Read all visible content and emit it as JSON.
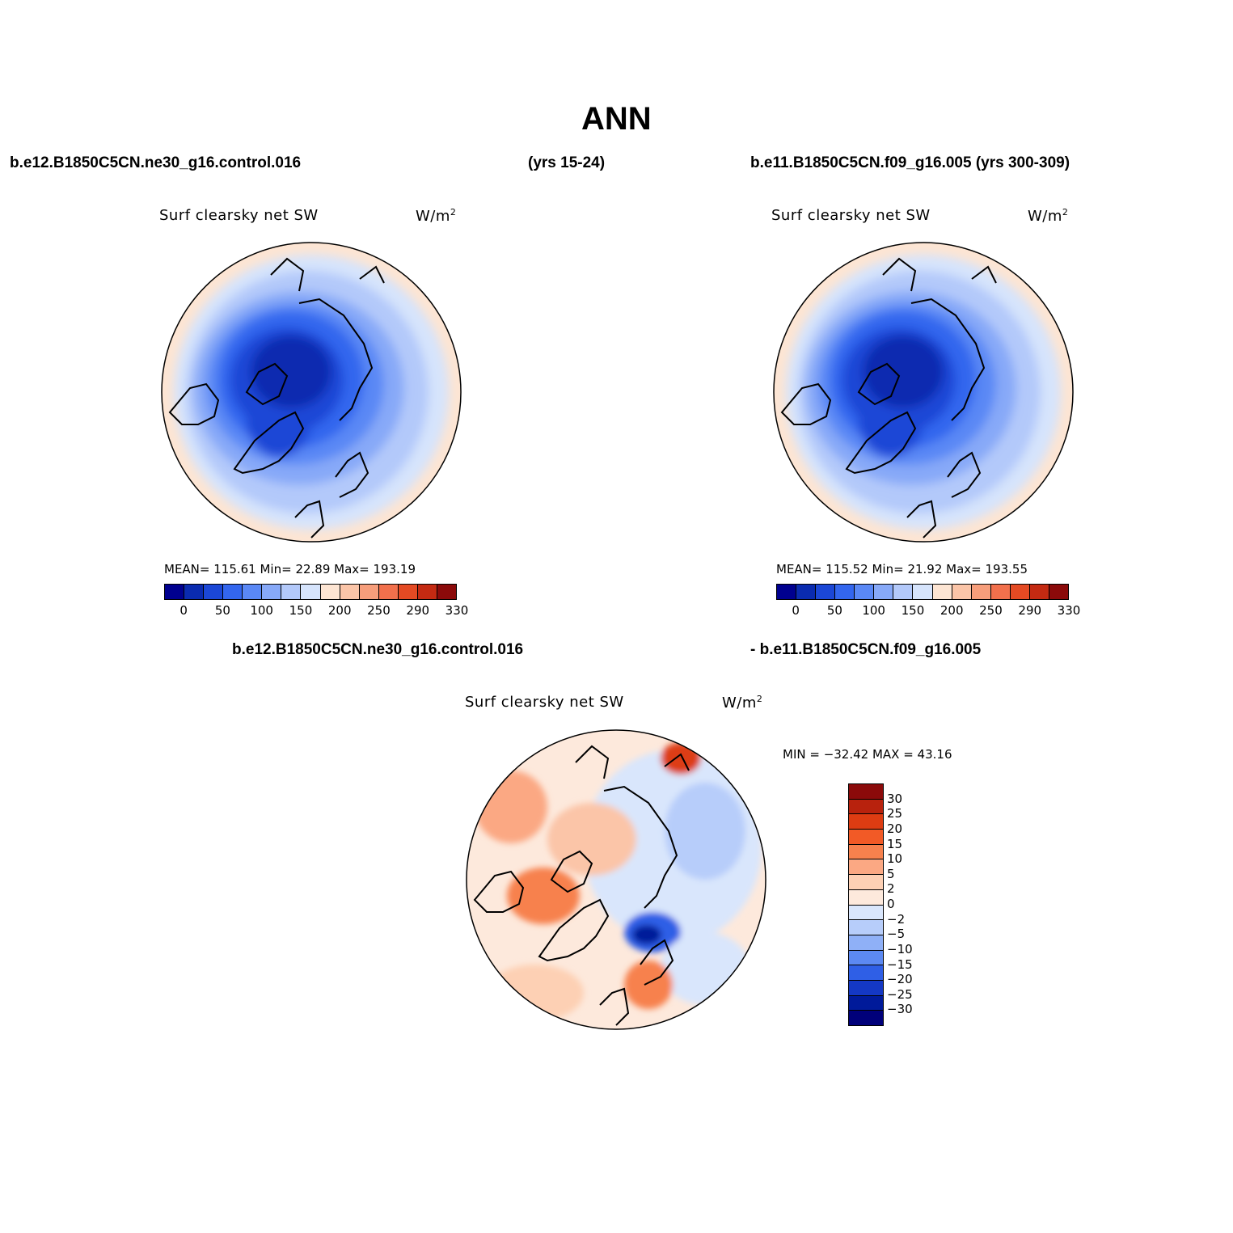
{
  "header": {
    "title": "ANN",
    "case1": "b.e12.B1850C5CN.ne30_g16.control.016",
    "case1_years": "(yrs 15-24)",
    "case2": "b.e11.B1850C5CN.f09_g16.005 (yrs 300-309)"
  },
  "panels": [
    {
      "variable": "Surf clearsky net SW",
      "units": "W/m",
      "units_sup": "2",
      "stats": "MEAN= 115.61   Min=   22.89   Max=  193.19"
    },
    {
      "variable": "Surf clearsky net SW",
      "units": "W/m",
      "units_sup": "2",
      "stats": "MEAN= 115.52   Min=   21.92   Max=  193.55"
    }
  ],
  "abs_colorbar": {
    "colors": [
      "#00008f",
      "#0a2bb0",
      "#1b47d6",
      "#3366ee",
      "#5a88f5",
      "#87a9f8",
      "#b3c9fa",
      "#d6e4fc",
      "#fde5d3",
      "#fbc5a8",
      "#f79e7b",
      "#f2704c",
      "#e44a23",
      "#c42a12",
      "#8b0a0a"
    ],
    "ticks": [
      "0",
      "50",
      "100",
      "150",
      "200",
      "250",
      "290",
      "330"
    ]
  },
  "diff": {
    "case_left": "b.e12.B1850C5CN.ne30_g16.control.016",
    "case_right": "- b.e11.B1850C5CN.f09_g16.005",
    "variable": "Surf clearsky net SW",
    "units": "W/m",
    "units_sup": "2",
    "minmax": "MIN = −32.42 MAX =   43.16"
  },
  "diff_colorbar": {
    "colors": [
      "#8b0a0a",
      "#b8220d",
      "#dd3c12",
      "#f25a26",
      "#f7814d",
      "#fba883",
      "#fdd0b4",
      "#fde9dc",
      "#d9e6fc",
      "#b7cdfa",
      "#8fb0f7",
      "#5c89f2",
      "#2f5fe6",
      "#1438c4",
      "#001a9a",
      "#00007a"
    ],
    "ticks": [
      "30",
      "25",
      "20",
      "15",
      "10",
      "5",
      "2",
      "0",
      "−2",
      "−5",
      "−10",
      "−15",
      "−20",
      "−25",
      "−30"
    ]
  },
  "colors": {
    "deep_blue": "#0022b5",
    "mid_blue": "#3a6ee8",
    "light_blue": "#a8c2f6",
    "pale_blue": "#d6e4fc",
    "peach": "#fde5d3",
    "diff_red": "#e8612e",
    "diff_blue": "#2a55e0"
  }
}
